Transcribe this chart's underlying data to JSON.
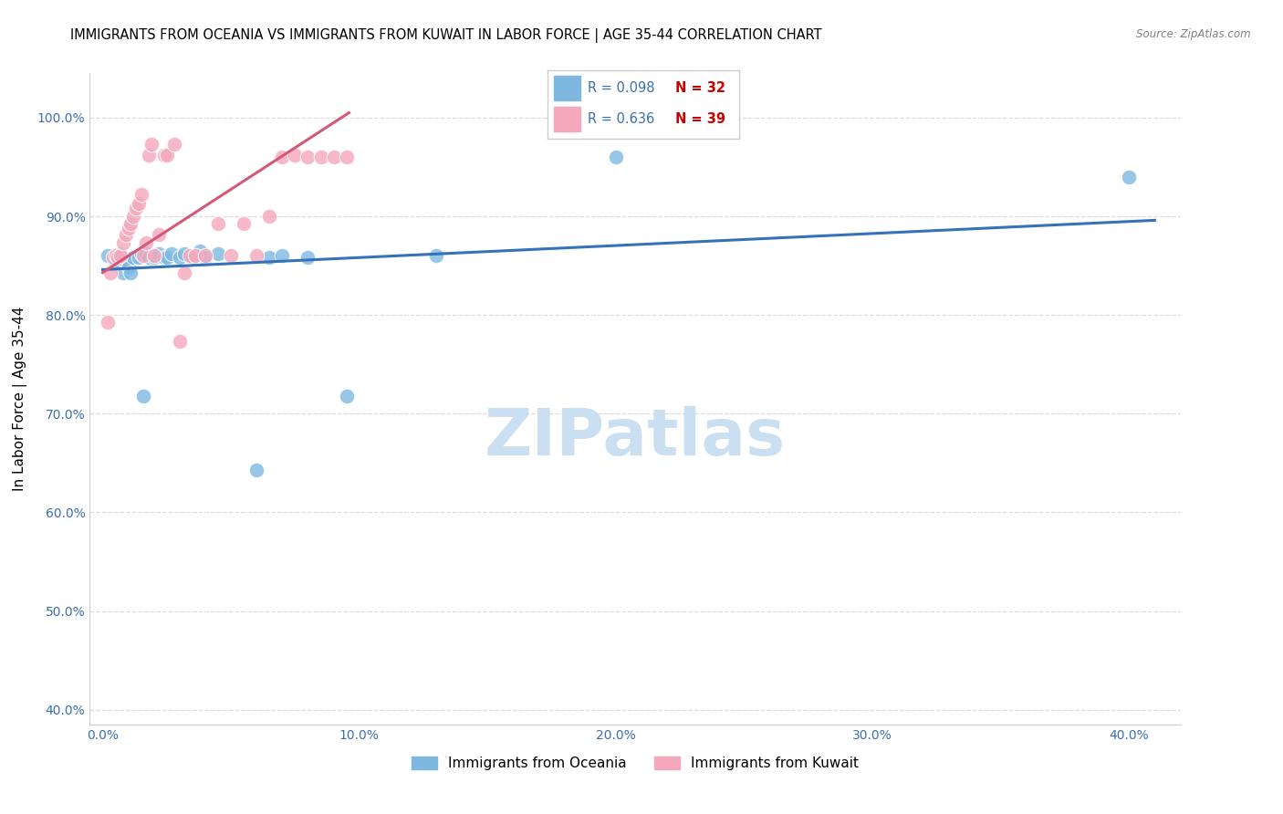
{
  "title": "IMMIGRANTS FROM OCEANIA VS IMMIGRANTS FROM KUWAIT IN LABOR FORCE | AGE 35-44 CORRELATION CHART",
  "source": "Source: ZipAtlas.com",
  "ylabel": "In Labor Force | Age 35-44",
  "xlim": [
    -0.005,
    0.42
  ],
  "ylim": [
    0.385,
    1.045
  ],
  "yticks": [
    0.4,
    0.5,
    0.6,
    0.7,
    0.8,
    0.9,
    1.0
  ],
  "ytick_labels": [
    "40.0%",
    "50.0%",
    "60.0%",
    "70.0%",
    "80.0%",
    "90.0%",
    "100.0%"
  ],
  "xticks": [
    0.0,
    0.1,
    0.2,
    0.3,
    0.4
  ],
  "xtick_labels": [
    "0.0%",
    "10.0%",
    "20.0%",
    "30.0%",
    "40.0%"
  ],
  "blue_scatter_color": "#7eb8e0",
  "pink_scatter_color": "#f5a8bc",
  "blue_line_color": "#3672b8",
  "pink_line_color": "#d45878",
  "blue_scatter_x": [
    0.002,
    0.005,
    0.007,
    0.008,
    0.009,
    0.01,
    0.011,
    0.012,
    0.014,
    0.015,
    0.016,
    0.017,
    0.018,
    0.02,
    0.022,
    0.024,
    0.025,
    0.027,
    0.03,
    0.032,
    0.035,
    0.038,
    0.04,
    0.045,
    0.06,
    0.065,
    0.07,
    0.08,
    0.095,
    0.13,
    0.2,
    0.4
  ],
  "blue_scatter_y": [
    0.86,
    0.852,
    0.862,
    0.843,
    0.855,
    0.848,
    0.843,
    0.858,
    0.858,
    0.862,
    0.718,
    0.862,
    0.858,
    0.858,
    0.862,
    0.858,
    0.858,
    0.862,
    0.858,
    0.862,
    0.858,
    0.865,
    0.858,
    0.862,
    0.643,
    0.858,
    0.86,
    0.858,
    0.718,
    0.86,
    0.96,
    0.94
  ],
  "pink_scatter_x": [
    0.002,
    0.003,
    0.004,
    0.005,
    0.006,
    0.007,
    0.008,
    0.009,
    0.01,
    0.011,
    0.012,
    0.013,
    0.014,
    0.015,
    0.016,
    0.017,
    0.018,
    0.019,
    0.02,
    0.022,
    0.024,
    0.025,
    0.028,
    0.03,
    0.032,
    0.034,
    0.036,
    0.04,
    0.045,
    0.05,
    0.055,
    0.06,
    0.065,
    0.07,
    0.075,
    0.08,
    0.085,
    0.09,
    0.095
  ],
  "pink_scatter_y": [
    0.793,
    0.843,
    0.858,
    0.86,
    0.858,
    0.86,
    0.873,
    0.882,
    0.888,
    0.893,
    0.9,
    0.908,
    0.913,
    0.922,
    0.86,
    0.873,
    0.962,
    0.973,
    0.86,
    0.882,
    0.962,
    0.962,
    0.973,
    0.773,
    0.843,
    0.86,
    0.86,
    0.86,
    0.893,
    0.86,
    0.893,
    0.86,
    0.9,
    0.96,
    0.962,
    0.96,
    0.96,
    0.96,
    0.96
  ],
  "blue_trend_x0": 0.0,
  "blue_trend_y0": 0.846,
  "blue_trend_x1": 0.41,
  "blue_trend_y1": 0.896,
  "pink_trend_x0": 0.0,
  "pink_trend_y0": 0.843,
  "pink_trend_x1": 0.096,
  "pink_trend_y1": 1.005,
  "legend_blue_r": "R = 0.098",
  "legend_blue_n": "N = 32",
  "legend_pink_r": "R = 0.636",
  "legend_pink_n": "N = 39",
  "watermark_text": "ZIPatlas",
  "watermark_color": "#c8dff2",
  "grid_color": "#dddddd",
  "background_color": "#ffffff",
  "title_fontsize": 10.5,
  "axis_label_fontsize": 11,
  "tick_fontsize": 10,
  "watermark_fontsize": 52,
  "tick_color": "#3a6faf",
  "r_color": "#3a6faf",
  "n_color": "#cc0000"
}
